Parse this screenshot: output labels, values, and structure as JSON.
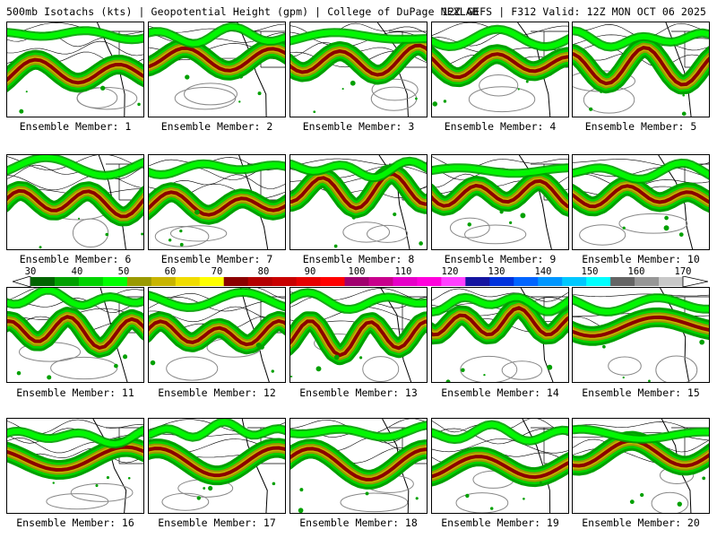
{
  "header": {
    "title_left": "500mb Isotachs (kts) | Geopotential Height (gpm) | College of DuPage NEXLAB",
    "title_right": "12Z GEFS | F312 Valid: 12Z MON OCT 06 2025"
  },
  "colorbar": {
    "labels": [
      "30",
      "40",
      "50",
      "60",
      "70",
      "80",
      "90",
      "100",
      "110",
      "120",
      "130",
      "140",
      "150",
      "160",
      "170"
    ],
    "colors": [
      "#006400",
      "#00a000",
      "#00d200",
      "#00ff00",
      "#9a9a00",
      "#c8b400",
      "#f0dc00",
      "#ffff00",
      "#8b0000",
      "#b40000",
      "#c80000",
      "#e60000",
      "#ff0000",
      "#a0006e",
      "#c8008c",
      "#e600c8",
      "#ff00dc",
      "#ff40ff",
      "#1414a0",
      "#0032dc",
      "#0064ff",
      "#0096ff",
      "#00c8ff",
      "#00ffff",
      "#646464",
      "#969696",
      "#c8c8c8"
    ]
  },
  "members": [
    {
      "label": "Ensemble Member: 1",
      "seed": 1
    },
    {
      "label": "Ensemble Member: 2",
      "seed": 2
    },
    {
      "label": "Ensemble Member: 3",
      "seed": 3
    },
    {
      "label": "Ensemble Member: 4",
      "seed": 4
    },
    {
      "label": "Ensemble Member: 5",
      "seed": 5
    },
    {
      "label": "Ensemble Member: 6",
      "seed": 6
    },
    {
      "label": "Ensemble Member: 7",
      "seed": 7
    },
    {
      "label": "Ensemble Member: 8",
      "seed": 8
    },
    {
      "label": "Ensemble Member: 9",
      "seed": 9
    },
    {
      "label": "Ensemble Member: 10",
      "seed": 10
    },
    {
      "label": "Ensemble Member: 11",
      "seed": 11
    },
    {
      "label": "Ensemble Member: 12",
      "seed": 12
    },
    {
      "label": "Ensemble Member: 13",
      "seed": 13
    },
    {
      "label": "Ensemble Member: 14",
      "seed": 14
    },
    {
      "label": "Ensemble Member: 15",
      "seed": 15
    },
    {
      "label": "Ensemble Member: 16",
      "seed": 16
    },
    {
      "label": "Ensemble Member: 17",
      "seed": 17
    },
    {
      "label": "Ensemble Member: 18",
      "seed": 18
    },
    {
      "label": "Ensemble Member: 19",
      "seed": 19
    },
    {
      "label": "Ensemble Member: 20",
      "seed": 20
    }
  ]
}
